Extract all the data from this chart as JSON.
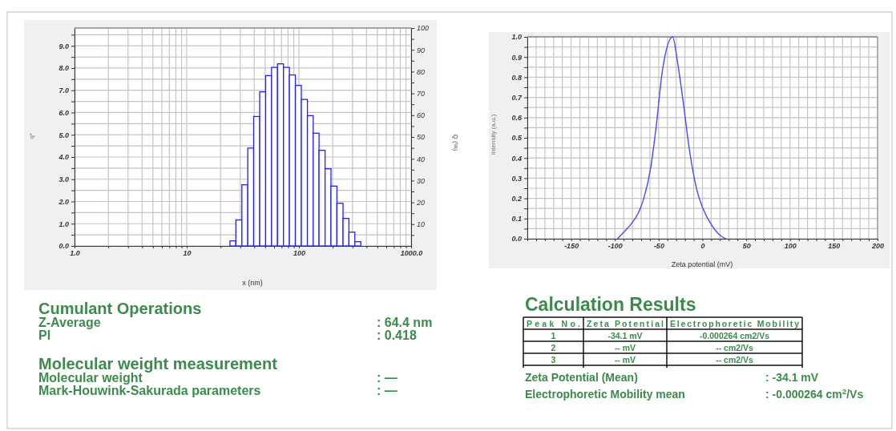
{
  "chart_data": [
    {
      "type": "histogram",
      "xlabel": "x (nm)",
      "ylabel": "q*",
      "y2label": "Q (%)",
      "log": "x",
      "grid": true,
      "color": "#2222ee",
      "bins": [
        24.3,
        27.4,
        31.0,
        35.0,
        39.5,
        44.7,
        50.5,
        57.0,
        64.4,
        72.8,
        82.2,
        92.9,
        105,
        119,
        134,
        151,
        171,
        193,
        218,
        247,
        279,
        315,
        356
      ],
      "values": [
        0.23,
        1.17,
        2.75,
        4.4,
        5.82,
        6.93,
        7.66,
        8.03,
        8.19,
        8.03,
        7.69,
        7.22,
        6.59,
        5.86,
        5.07,
        4.3,
        3.47,
        2.69,
        1.92,
        1.24,
        0.62,
        0.19
      ],
      "xlim": [
        1,
        1000
      ],
      "xticks": [
        {
          "value": 1,
          "label": "1.0"
        },
        {
          "value": 2,
          "label": null
        },
        {
          "value": 3,
          "label": null
        },
        {
          "value": 4,
          "label": null
        },
        {
          "value": 5,
          "label": null
        },
        {
          "value": 6,
          "label": null
        },
        {
          "value": 7,
          "label": null
        },
        {
          "value": 8,
          "label": null
        },
        {
          "value": 9,
          "label": null
        },
        {
          "value": 10,
          "label": "10"
        },
        {
          "value": 20,
          "label": null
        },
        {
          "value": 30,
          "label": null
        },
        {
          "value": 40,
          "label": null
        },
        {
          "value": 50,
          "label": null
        },
        {
          "value": 60,
          "label": null
        },
        {
          "value": 70,
          "label": null
        },
        {
          "value": 80,
          "label": null
        },
        {
          "value": 90,
          "label": null
        },
        {
          "value": 100,
          "label": "100"
        },
        {
          "value": 200,
          "label": null
        },
        {
          "value": 300,
          "label": null
        },
        {
          "value": 400,
          "label": null
        },
        {
          "value": 500,
          "label": null
        },
        {
          "value": 600,
          "label": null
        },
        {
          "value": 700,
          "label": null
        },
        {
          "value": 800,
          "label": null
        },
        {
          "value": 900,
          "label": null
        },
        {
          "value": 1000,
          "label": "1000.0"
        }
      ],
      "ylim": [
        0,
        9.8
      ],
      "yticks": [
        {
          "value": 0,
          "label": "0.0"
        },
        {
          "value": 0.5,
          "label": null
        },
        {
          "value": 1,
          "label": "1.0"
        },
        {
          "value": 1.5,
          "label": null
        },
        {
          "value": 2,
          "label": "2.0"
        },
        {
          "value": 2.5,
          "label": null
        },
        {
          "value": 3,
          "label": "3.0"
        },
        {
          "value": 3.5,
          "label": null
        },
        {
          "value": 4,
          "label": "4.0"
        },
        {
          "value": 4.5,
          "label": null
        },
        {
          "value": 5,
          "label": "5.0"
        },
        {
          "value": 5.5,
          "label": null
        },
        {
          "value": 6,
          "label": "6.0"
        },
        {
          "value": 6.5,
          "label": null
        },
        {
          "value": 7,
          "label": "7.0"
        },
        {
          "value": 7.5,
          "label": null
        },
        {
          "value": 8,
          "label": "8.0"
        },
        {
          "value": 8.5,
          "label": null
        },
        {
          "value": 9,
          "label": "9.0"
        },
        {
          "value": 9.5,
          "label": null
        }
      ],
      "y2lim": [
        0,
        100
      ],
      "y2ticks": [
        {
          "value": 5,
          "label": null
        },
        10,
        {
          "value": 15,
          "label": null
        },
        20,
        {
          "value": 25,
          "label": null
        },
        30,
        {
          "value": 35,
          "label": null
        },
        40,
        {
          "value": 45,
          "label": null
        },
        50,
        {
          "value": 55,
          "label": null
        },
        60,
        {
          "value": 65,
          "label": null
        },
        70,
        {
          "value": 75,
          "label": null
        },
        80,
        {
          "value": 85,
          "label": null
        },
        90,
        {
          "value": 95,
          "label": null
        },
        100
      ]
    },
    {
      "type": "line",
      "xlabel": "Zeta potential (mV)",
      "ylabel": "Intensity (a.u.)",
      "grid": true,
      "line_style": "solid",
      "color": "#4a4aee",
      "x": [
        -97,
        -89,
        -82,
        -73,
        -67,
        -59,
        -53,
        -46,
        -34,
        -29,
        -23,
        -14,
        -6,
        0,
        11,
        23,
        27
      ],
      "values": [
        0,
        0.037,
        0.07,
        0.13,
        0.2,
        0.355,
        0.55,
        0.825,
        1.0,
        0.89,
        0.71,
        0.415,
        0.235,
        0.156,
        0.064,
        0.008,
        0
      ],
      "xlim": [
        -200,
        200
      ],
      "xticks": [
        {
          "value": -200,
          "label": null
        },
        {
          "value": -190,
          "label": null
        },
        {
          "value": -180,
          "label": null
        },
        {
          "value": -170,
          "label": null
        },
        {
          "value": -160,
          "label": null
        },
        -150,
        {
          "value": -140,
          "label": null
        },
        {
          "value": -130,
          "label": null
        },
        {
          "value": -120,
          "label": null
        },
        {
          "value": -110,
          "label": null
        },
        -100,
        {
          "value": -90,
          "label": null
        },
        {
          "value": -80,
          "label": null
        },
        {
          "value": -70,
          "label": null
        },
        {
          "value": -60,
          "label": null
        },
        -50,
        {
          "value": -40,
          "label": null
        },
        {
          "value": -30,
          "label": null
        },
        {
          "value": -20,
          "label": null
        },
        {
          "value": -10,
          "label": null
        },
        0,
        {
          "value": 10,
          "label": null
        },
        {
          "value": 20,
          "label": null
        },
        {
          "value": 30,
          "label": null
        },
        {
          "value": 40,
          "label": null
        },
        50,
        {
          "value": 60,
          "label": null
        },
        {
          "value": 70,
          "label": null
        },
        {
          "value": 80,
          "label": null
        },
        {
          "value": 90,
          "label": null
        },
        100,
        {
          "value": 110,
          "label": null
        },
        {
          "value": 120,
          "label": null
        },
        {
          "value": 130,
          "label": null
        },
        {
          "value": 140,
          "label": null
        },
        150,
        {
          "value": 160,
          "label": null
        },
        {
          "value": 170,
          "label": null
        },
        {
          "value": 180,
          "label": null
        },
        {
          "value": 190,
          "label": null
        },
        200
      ],
      "ylim": [
        0,
        1
      ],
      "yticks": [
        {
          "value": 0,
          "label": "0.0"
        },
        {
          "value": 0.05,
          "label": null
        },
        {
          "value": 0.1,
          "label": "0.1"
        },
        {
          "value": 0.15,
          "label": null
        },
        {
          "value": 0.2,
          "label": "0.2"
        },
        {
          "value": 0.25,
          "label": null
        },
        {
          "value": 0.3,
          "label": "0.3"
        },
        {
          "value": 0.35,
          "label": null
        },
        {
          "value": 0.4,
          "label": "0.4"
        },
        {
          "value": 0.45,
          "label": null
        },
        {
          "value": 0.5,
          "label": "0.5"
        },
        {
          "value": 0.55,
          "label": null
        },
        {
          "value": 0.6,
          "label": "0.6"
        },
        {
          "value": 0.65,
          "label": null
        },
        {
          "value": 0.7,
          "label": "0.7"
        },
        {
          "value": 0.75,
          "label": null
        },
        {
          "value": 0.8,
          "label": "0.8"
        },
        {
          "value": 0.85,
          "label": null
        },
        {
          "value": 0.9,
          "label": "0.9"
        },
        {
          "value": 0.95,
          "label": null
        },
        {
          "value": 1,
          "label": "1.0"
        }
      ]
    },
    {
      "type": "other",
      "title": "Cumulant Operations",
      "annotations": [
        "Z-Average",
        ":  64.4 nm",
        "PI",
        ":  0.418"
      ]
    },
    {
      "type": "other",
      "title": "Molecular weight measurement",
      "annotations": [
        "Molecular weight",
        ":  —",
        "Mark-Houwink-Sakurada parameters",
        ":  —"
      ]
    },
    {
      "type": "other",
      "title": "Calculation Results",
      "annotations": [
        "Peak No.",
        "Zeta Potential",
        "Electrophoretic Mobility",
        "1",
        "-34.1 mV",
        "-0.000264 cm2/Vs",
        "2",
        "-- mV",
        "-- cm2/Vs",
        "3",
        "-- mV",
        "-- cm2/Vs",
        "Zeta Potential (Mean)",
        ":  -34.1 mV",
        "Electrophoretic Mobility mean",
        ":  -0.000264 cm$^{2}$/Vs"
      ]
    }
  ]
}
